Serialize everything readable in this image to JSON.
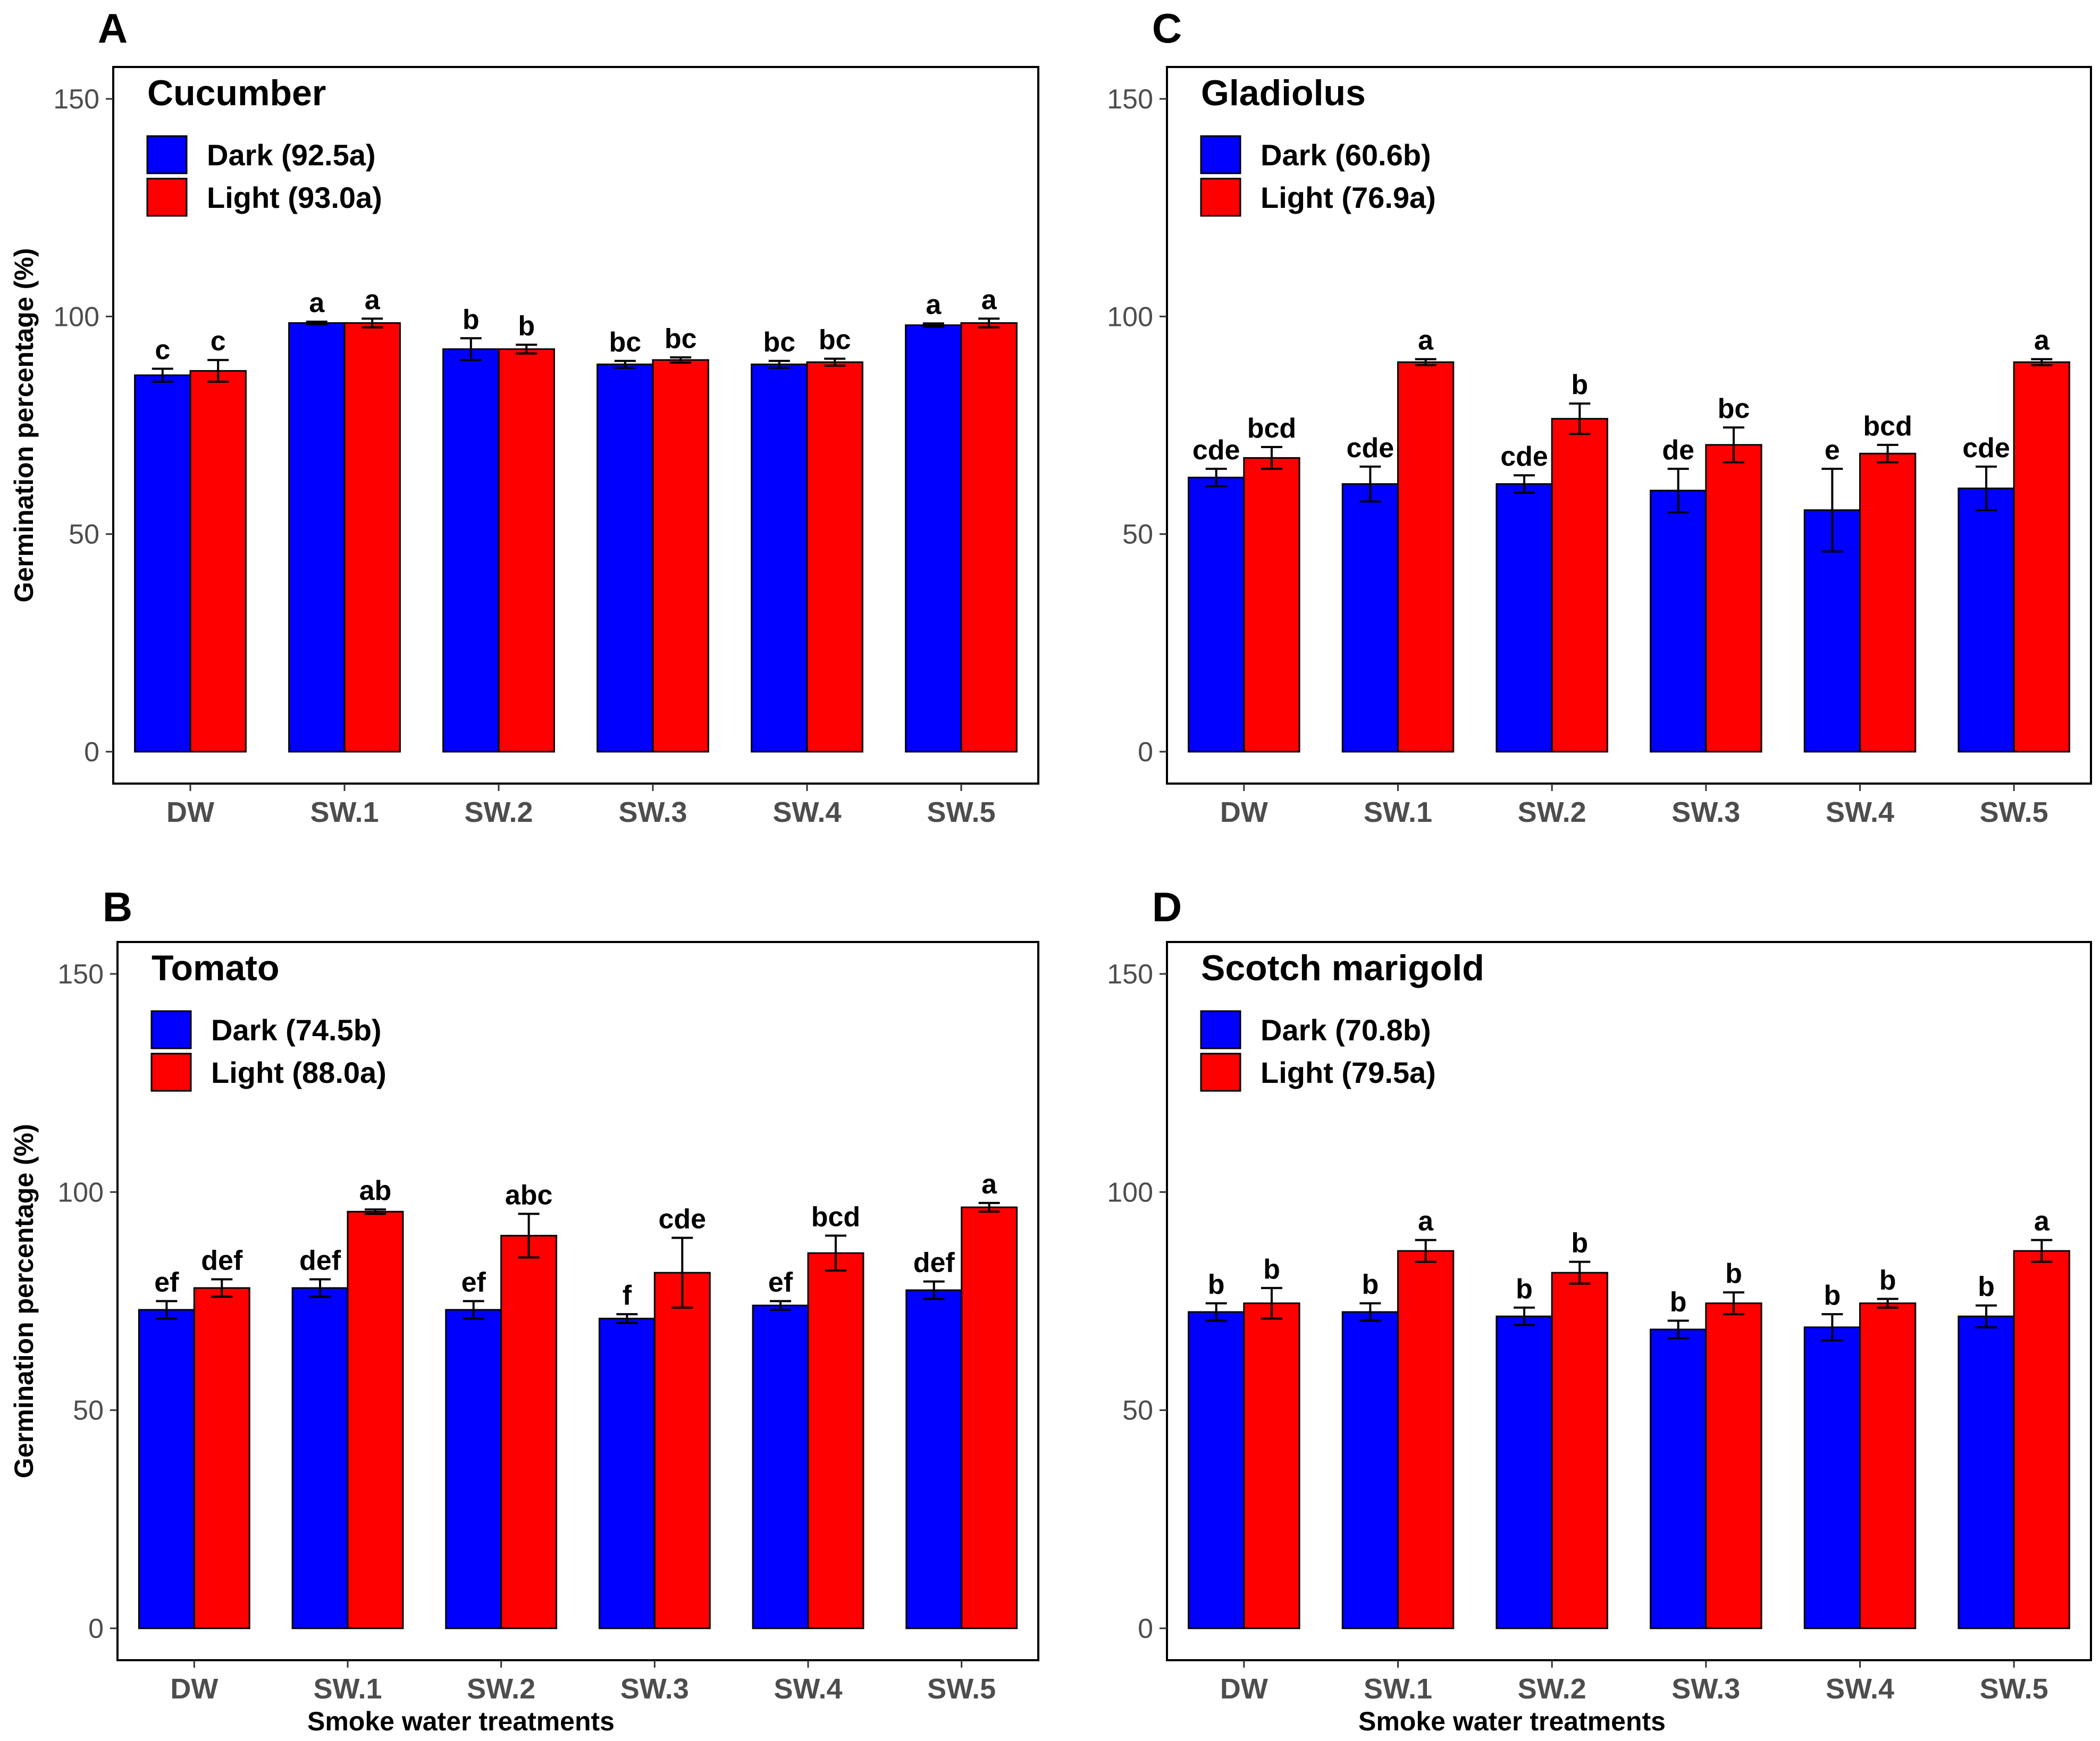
{
  "colors": {
    "dark": "#0000ff",
    "light": "#ff0000"
  },
  "xlabel": "Smoke water treatments",
  "ylabel": "Germination percentage (%)",
  "chart_data": [
    {
      "panel": "A",
      "type": "bar",
      "title": "Cucumber",
      "categories": [
        "DW",
        "SW.1",
        "SW.2",
        "SW.3",
        "SW.4",
        "SW.5"
      ],
      "ylim": [
        0,
        150
      ],
      "yticks": [
        "0",
        "50",
        "100",
        "150"
      ],
      "xlabel": "",
      "ylabel": "Germination percentage (%)",
      "series": [
        {
          "name": "Dark (92.5a)",
          "color": "#0000ff",
          "values": [
            86.5,
            98.5,
            92.5,
            89.0,
            89.0,
            98.0
          ],
          "errors": [
            1.5,
            0.3,
            2.5,
            0.8,
            0.8,
            0.4
          ],
          "letters": [
            "c",
            "a",
            "b",
            "bc",
            "bc",
            "a"
          ]
        },
        {
          "name": "Light (93.0a)",
          "color": "#ff0000",
          "values": [
            87.5,
            98.5,
            92.5,
            90.0,
            89.5,
            98.5
          ],
          "errors": [
            2.5,
            1.0,
            1.0,
            0.6,
            0.8,
            1.0
          ],
          "letters": [
            "c",
            "a",
            "b",
            "bc",
            "bc",
            "a"
          ]
        }
      ]
    },
    {
      "panel": "C",
      "type": "bar",
      "title": "Gladiolus",
      "categories": [
        "DW",
        "SW.1",
        "SW.2",
        "SW.3",
        "SW.4",
        "SW.5"
      ],
      "ylim": [
        0,
        150
      ],
      "yticks": [
        "0",
        "50",
        "100",
        "150"
      ],
      "xlabel": "",
      "ylabel": "",
      "series": [
        {
          "name": "Dark (60.6b)",
          "color": "#0000ff",
          "values": [
            63.0,
            61.5,
            61.5,
            60.0,
            55.5,
            60.5
          ],
          "errors": [
            2.0,
            4.0,
            2.0,
            5.0,
            9.5,
            5.0
          ],
          "letters": [
            "cde",
            "cde",
            "cde",
            "de",
            "e",
            "cde"
          ]
        },
        {
          "name": "Light (76.9a)",
          "color": "#ff0000",
          "values": [
            67.5,
            89.5,
            76.5,
            70.5,
            68.5,
            89.5
          ],
          "errors": [
            2.5,
            0.7,
            3.5,
            4.0,
            2.0,
            0.7
          ],
          "letters": [
            "bcd",
            "a",
            "b",
            "bc",
            "bcd",
            "a"
          ]
        }
      ]
    },
    {
      "panel": "B",
      "type": "bar",
      "title": "Tomato",
      "categories": [
        "DW",
        "SW.1",
        "SW.2",
        "SW.3",
        "SW.4",
        "SW.5"
      ],
      "ylim": [
        0,
        150
      ],
      "yticks": [
        "0",
        "50",
        "100",
        "150"
      ],
      "xlabel": "Smoke water treatments",
      "ylabel": "Germination percentage (%)",
      "series": [
        {
          "name": "Dark (74.5b)",
          "color": "#0000ff",
          "values": [
            73.0,
            78.0,
            73.0,
            71.0,
            74.0,
            77.5
          ],
          "errors": [
            2.0,
            2.0,
            2.0,
            1.0,
            1.0,
            2.0
          ],
          "letters": [
            "ef",
            "def",
            "ef",
            "f",
            "ef",
            "def"
          ]
        },
        {
          "name": "Light (88.0a)",
          "color": "#ff0000",
          "values": [
            78.0,
            95.5,
            90.0,
            81.5,
            86.0,
            96.5
          ],
          "errors": [
            2.0,
            0.5,
            5.0,
            8.0,
            4.0,
            1.0
          ],
          "letters": [
            "def",
            "ab",
            "abc",
            "cde",
            "bcd",
            "a"
          ]
        }
      ]
    },
    {
      "panel": "D",
      "type": "bar",
      "title": "Scotch marigold",
      "categories": [
        "DW",
        "SW.1",
        "SW.2",
        "SW.3",
        "SW.4",
        "SW.5"
      ],
      "ylim": [
        0,
        150
      ],
      "yticks": [
        "0",
        "50",
        "100",
        "150"
      ],
      "xlabel": "Smoke water treatments",
      "ylabel": "",
      "series": [
        {
          "name": "Dark (70.8b)",
          "color": "#0000ff",
          "values": [
            72.5,
            72.5,
            71.5,
            68.5,
            69.0,
            71.5
          ],
          "errors": [
            2.0,
            2.0,
            2.0,
            2.0,
            3.0,
            2.5
          ],
          "letters": [
            "b",
            "b",
            "b",
            "b",
            "b",
            "b"
          ]
        },
        {
          "name": "Light (79.5a)",
          "color": "#ff0000",
          "values": [
            74.5,
            86.5,
            81.5,
            74.5,
            74.5,
            86.5
          ],
          "errors": [
            3.5,
            2.5,
            2.5,
            2.5,
            1.0,
            2.5
          ],
          "letters": [
            "b",
            "a",
            "b",
            "b",
            "b",
            "a"
          ]
        }
      ]
    }
  ]
}
